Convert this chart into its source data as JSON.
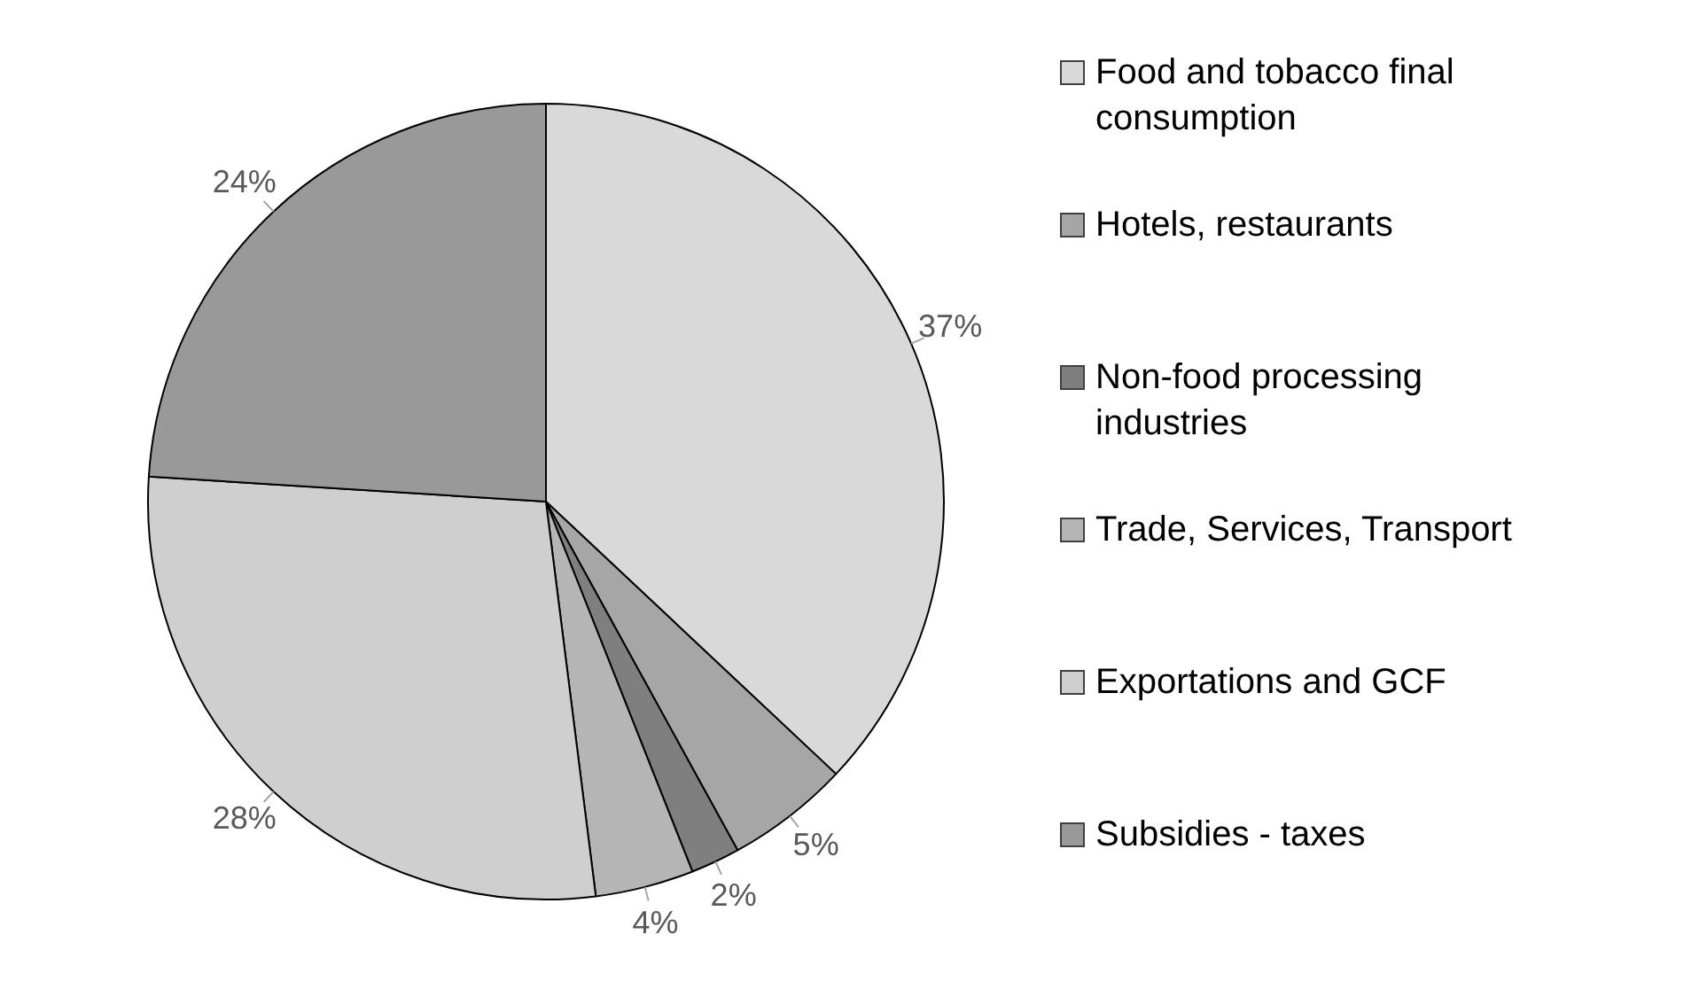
{
  "chart_data": {
    "type": "pie",
    "categories": [
      "Food and tobacco final consumption",
      "Hotels, restaurants",
      "Non-food processing industries",
      "Trade, Services, Transport",
      "Exportations and GCF",
      "Subsidies - taxes"
    ],
    "values": [
      37,
      5,
      2,
      4,
      28,
      24
    ],
    "colors": [
      "#d9d9d9",
      "#a6a6a6",
      "#7f7f7f",
      "#b5b5b5",
      "#cfcfcf",
      "#999999"
    ],
    "value_labels": [
      "37%",
      "5%",
      "2%",
      "4%",
      "28%",
      "24%"
    ],
    "legend": "right"
  }
}
